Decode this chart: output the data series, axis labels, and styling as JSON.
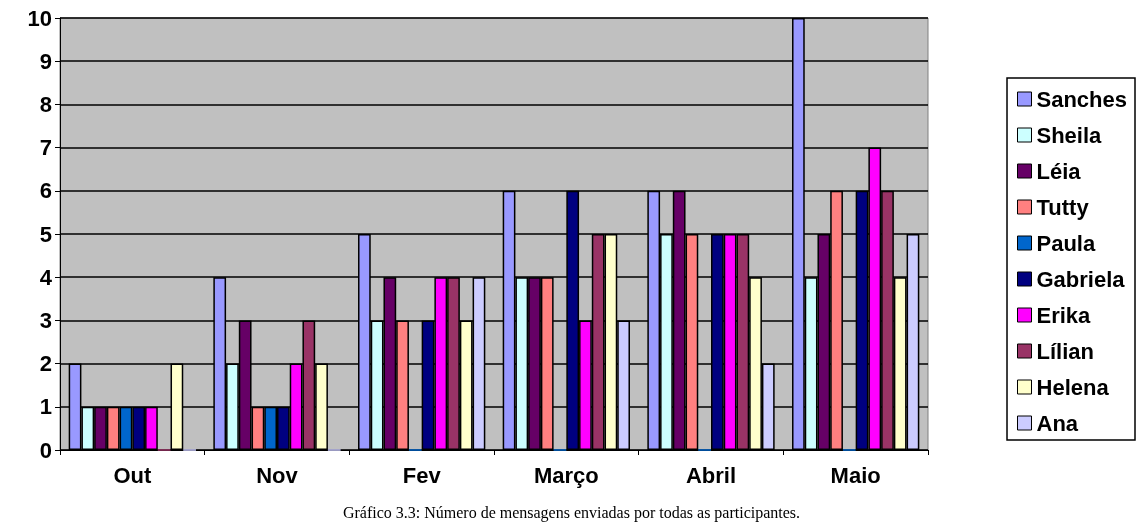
{
  "chart_data": {
    "type": "bar",
    "categories": [
      "Out",
      "Nov",
      "Fev",
      "Março",
      "Abril",
      "Maio"
    ],
    "series": [
      {
        "name": "Sanches",
        "color": "#9999ff",
        "values": [
          2,
          4,
          5,
          6,
          6,
          10
        ]
      },
      {
        "name": "Sheila",
        "color": "#ccffff",
        "values": [
          1,
          2,
          3,
          4,
          5,
          4
        ]
      },
      {
        "name": "Léia",
        "color": "#660066",
        "values": [
          1,
          3,
          4,
          4,
          6,
          5
        ]
      },
      {
        "name": "Tutty",
        "color": "#ff8080",
        "values": [
          1,
          1,
          3,
          4,
          5,
          6
        ]
      },
      {
        "name": "Paula",
        "color": "#0066cc",
        "values": [
          1,
          1,
          0,
          0,
          0,
          0
        ]
      },
      {
        "name": "Gabriela",
        "color": "#000080",
        "values": [
          1,
          1,
          3,
          6,
          5,
          6
        ]
      },
      {
        "name": "Erika",
        "color": "#ff00ff",
        "values": [
          1,
          2,
          4,
          3,
          5,
          7
        ]
      },
      {
        "name": "Lílian",
        "color": "#993366",
        "values": [
          0,
          3,
          4,
          5,
          5,
          6
        ]
      },
      {
        "name": "Helena",
        "color": "#ffffcc",
        "values": [
          2,
          2,
          3,
          5,
          4,
          4
        ]
      },
      {
        "name": "Ana",
        "color": "#ccccff",
        "values": [
          0,
          0,
          4,
          3,
          2,
          5
        ]
      }
    ],
    "ylim": [
      0,
      10
    ],
    "yticks": [
      0,
      1,
      2,
      3,
      4,
      5,
      6,
      7,
      8,
      9,
      10
    ],
    "grid": "y",
    "legend": "right",
    "annotations": [
      "Gráfico 3.3: Número de mensagens enviadas por todas as participantes."
    ]
  }
}
